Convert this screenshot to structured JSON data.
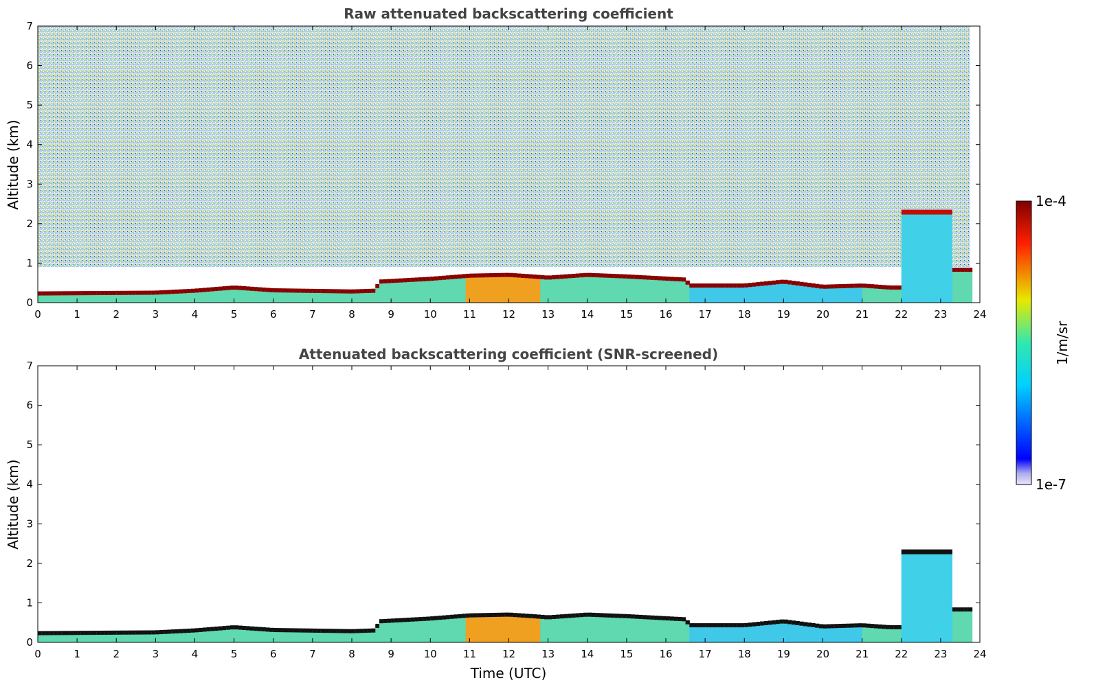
{
  "chart_data": [
    {
      "type": "heatmap",
      "title": "Raw attenuated backscattering coefficient",
      "xlabel": "",
      "ylabel": "Altitude (km)",
      "xlim": [
        0,
        24
      ],
      "ylim": [
        0,
        7
      ],
      "xticks": [
        "0",
        "1",
        "2",
        "3",
        "4",
        "5",
        "6",
        "7",
        "8",
        "9",
        "10",
        "11",
        "12",
        "13",
        "14",
        "15",
        "16",
        "17",
        "18",
        "19",
        "20",
        "21",
        "22",
        "23",
        "24"
      ],
      "yticks": [
        "0",
        "1",
        "2",
        "3",
        "4",
        "5",
        "6",
        "7"
      ],
      "data_end_time_utc": 23.75,
      "noise_above_layer": true,
      "boundary_layer_top_km": [
        [
          0,
          0.25
        ],
        [
          3,
          0.27
        ],
        [
          4,
          0.32
        ],
        [
          5,
          0.4
        ],
        [
          6,
          0.33
        ],
        [
          8,
          0.3
        ],
        [
          8.6,
          0.32
        ],
        [
          8.7,
          0.55
        ],
        [
          10,
          0.62
        ],
        [
          11,
          0.7
        ],
        [
          12,
          0.72
        ],
        [
          12.6,
          0.68
        ],
        [
          13,
          0.65
        ],
        [
          14,
          0.72
        ],
        [
          15,
          0.68
        ],
        [
          16.5,
          0.6
        ],
        [
          16.6,
          0.45
        ],
        [
          18,
          0.45
        ],
        [
          19,
          0.55
        ],
        [
          20,
          0.42
        ],
        [
          21,
          0.45
        ],
        [
          21.7,
          0.4
        ]
      ],
      "clouds_km": [
        {
          "t_start": 22.0,
          "t_end": 23.3,
          "top": 2.3
        },
        {
          "t_start": 23.3,
          "t_end": 23.75,
          "top": 0.85
        }
      ]
    },
    {
      "type": "heatmap",
      "title": "Attenuated backscattering coefficient (SNR-screened)",
      "xlabel": "Time (UTC)",
      "ylabel": "Altitude (km)",
      "xlim": [
        0,
        24
      ],
      "ylim": [
        0,
        7
      ],
      "xticks": [
        "0",
        "1",
        "2",
        "3",
        "4",
        "5",
        "6",
        "7",
        "8",
        "9",
        "10",
        "11",
        "12",
        "13",
        "14",
        "15",
        "16",
        "17",
        "18",
        "19",
        "20",
        "21",
        "22",
        "23",
        "24"
      ],
      "yticks": [
        "0",
        "1",
        "2",
        "3",
        "4",
        "5",
        "6",
        "7"
      ],
      "data_end_time_utc": 23.75,
      "noise_above_layer": false
    }
  ],
  "colorbar": {
    "label": "1/m/sr",
    "max_label": "1e-4",
    "min_label": "1e-7",
    "scale": "log",
    "colormap": "jet"
  }
}
